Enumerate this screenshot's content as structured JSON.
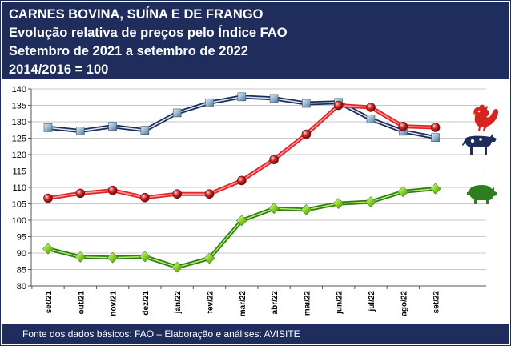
{
  "header": {
    "line1": "CARNES BOVINA, SUÍNA E DE FRANGO",
    "line2": "Evolução relativa de preços pelo Índice FAO",
    "line3": "Setembro de 2021 a setembro de 2022",
    "line4": "2014/2016 = 100"
  },
  "footer": {
    "source": "Fonte dos dados básicos: FAO – Elaboração e análises: AVISITE"
  },
  "colors": {
    "header_bg": "#1f2d5c",
    "beef": "#1f2d5c",
    "chicken": "#e0262b",
    "pork": "#2e7d1f"
  },
  "chart_data": {
    "type": "line",
    "categories": [
      "set/21",
      "out/21",
      "nov/21",
      "dez/21",
      "jan/22",
      "fev/22",
      "mar/22",
      "abr/22",
      "mai/22",
      "jun/22",
      "jul/22",
      "ago/22",
      "set/22"
    ],
    "ylim": [
      80,
      140
    ],
    "yticks": [
      80,
      85,
      90,
      95,
      100,
      105,
      110,
      115,
      120,
      125,
      130,
      135,
      140
    ],
    "grid": "horizontal",
    "legend": "icons at right (chicken, cow, pig)",
    "series": [
      {
        "key": "beef",
        "icon": "cow-icon",
        "marker": "square",
        "color": "#1f2d5c",
        "values": [
          128.2,
          127.2,
          128.6,
          127.4,
          132.7,
          135.8,
          137.6,
          137.1,
          135.6,
          135.9,
          130.8,
          127.1,
          125.2
        ]
      },
      {
        "key": "chicken",
        "icon": "rooster-icon",
        "marker": "circle",
        "color": "#e0262b",
        "values": [
          106.7,
          108.2,
          109.1,
          106.9,
          108.0,
          108.0,
          112.1,
          118.5,
          126.2,
          135.0,
          134.4,
          128.6,
          128.3
        ]
      },
      {
        "key": "pork",
        "icon": "pig-icon",
        "marker": "diamond",
        "color": "#2e7d1f",
        "values": [
          91.3,
          88.8,
          88.6,
          88.9,
          85.7,
          88.4,
          99.9,
          103.6,
          103.2,
          105.1,
          105.6,
          108.7,
          109.6
        ]
      }
    ]
  }
}
